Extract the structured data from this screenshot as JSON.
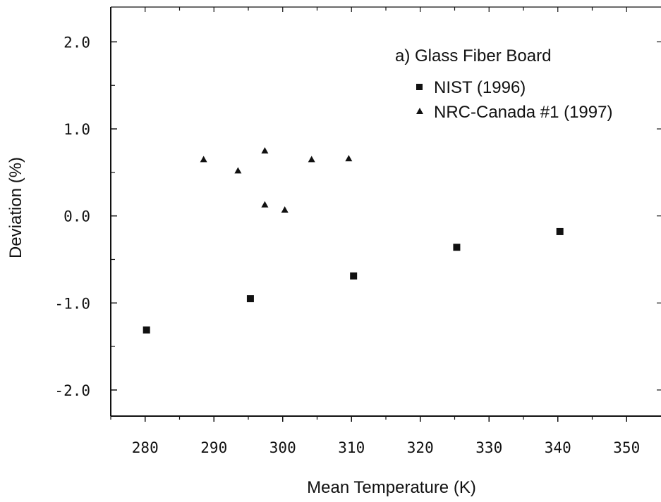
{
  "chart_data": {
    "type": "scatter",
    "annotation": "a) Glass Fiber Board",
    "xlabel": "Mean Temperature (K)",
    "ylabel": "Deviation (%)",
    "xlim": [
      275,
      355
    ],
    "ylim": [
      -2.3,
      2.4
    ],
    "xticks": [
      "280",
      "290",
      "300",
      "310",
      "320",
      "330",
      "340",
      "350"
    ],
    "yticks": [
      "2.0",
      "1.0",
      "0.0",
      "-1.0",
      "-2.0"
    ],
    "grid": false,
    "legend_position": "top-right",
    "series": [
      {
        "name": "NIST (1996)",
        "marker": "square",
        "color": "#111111",
        "points": [
          {
            "x": 280.2,
            "y": -1.31
          },
          {
            "x": 295.3,
            "y": -0.95
          },
          {
            "x": 310.3,
            "y": -0.69
          },
          {
            "x": 325.3,
            "y": -0.36
          },
          {
            "x": 340.3,
            "y": -0.18
          }
        ]
      },
      {
        "name": "NRC-Canada #1 (1997)",
        "marker": "triangle",
        "color": "#111111",
        "points": [
          {
            "x": 288.5,
            "y": 0.65
          },
          {
            "x": 293.5,
            "y": 0.52
          },
          {
            "x": 297.4,
            "y": 0.75
          },
          {
            "x": 297.4,
            "y": 0.13
          },
          {
            "x": 300.3,
            "y": 0.07
          },
          {
            "x": 304.2,
            "y": 0.65
          },
          {
            "x": 309.6,
            "y": 0.66
          }
        ]
      }
    ]
  }
}
